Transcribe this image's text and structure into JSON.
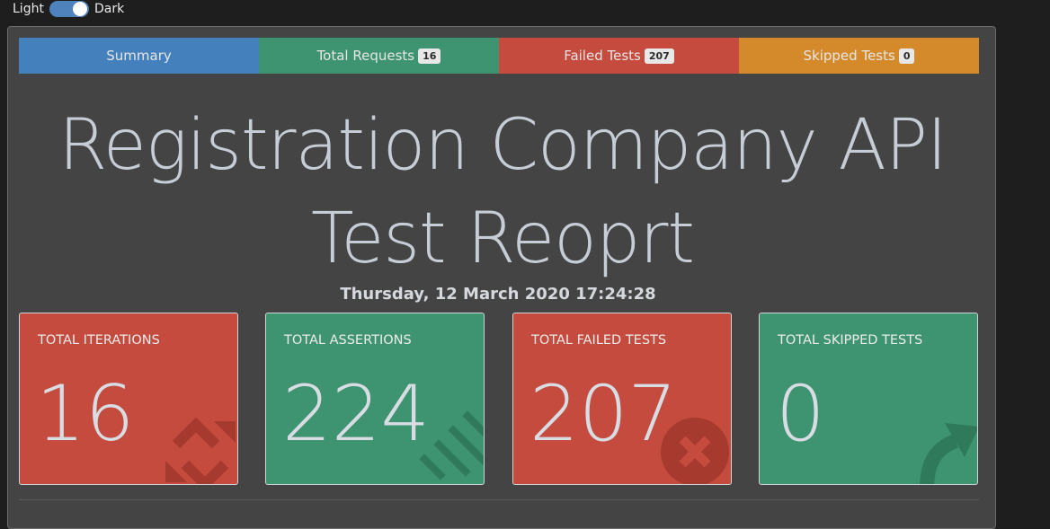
{
  "theme_switch": {
    "light_label": "Light",
    "dark_label": "Dark"
  },
  "tabs": {
    "summary": {
      "label": "Summary"
    },
    "total_requests": {
      "label": "Total Requests",
      "count": "16"
    },
    "failed_tests": {
      "label": "Failed Tests",
      "count": "207"
    },
    "skipped_tests": {
      "label": "Skipped Tests",
      "count": "0"
    }
  },
  "report": {
    "title_line1": "Registration Company API",
    "title_line2": "Test Reoprt",
    "date": "Thursday, 12 March 2020 17:24:28"
  },
  "cards": {
    "iterations": {
      "label": "TOTAL ITERATIONS",
      "value": "16",
      "icon": "sync-icon"
    },
    "assertions": {
      "label": "TOTAL ASSERTIONS",
      "value": "224",
      "icon": "stripes-icon"
    },
    "failed": {
      "label": "TOTAL FAILED TESTS",
      "value": "207",
      "icon": "times-circle-icon"
    },
    "skipped": {
      "label": "TOTAL SKIPPED TESTS",
      "value": "0",
      "icon": "share-icon"
    }
  },
  "colors": {
    "summary": "#4481bc",
    "success": "#3e9370",
    "danger": "#c44b3e",
    "warning": "#d48a2a"
  }
}
